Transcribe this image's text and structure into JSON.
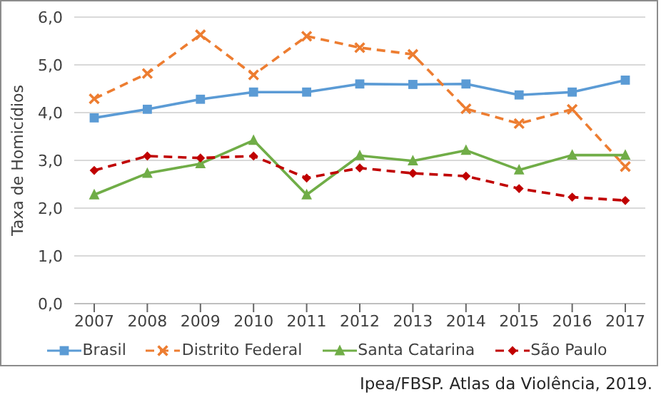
{
  "chart_data": {
    "type": "line",
    "ylabel": "Taxa de Homicídios",
    "categories": [
      "2007",
      "2008",
      "2009",
      "2010",
      "2011",
      "2012",
      "2013",
      "2014",
      "2015",
      "2016",
      "2017"
    ],
    "series": [
      {
        "name": "Brasil",
        "color": "#5b9bd5",
        "marker": "square",
        "line_style": "solid",
        "values": [
          3.89,
          4.07,
          4.28,
          4.43,
          4.43,
          4.6,
          4.59,
          4.6,
          4.37,
          4.43,
          4.68
        ]
      },
      {
        "name": "Distrito Federal",
        "color": "#ed7d31",
        "marker": "cross",
        "line_style": "dashed",
        "values": [
          4.29,
          4.82,
          5.63,
          4.79,
          5.6,
          5.36,
          5.22,
          4.08,
          3.77,
          4.07,
          2.87
        ]
      },
      {
        "name": "Santa Catarina",
        "color": "#70ad47",
        "marker": "triangle",
        "line_style": "solid",
        "values": [
          2.28,
          2.73,
          2.93,
          3.42,
          2.28,
          3.1,
          2.99,
          3.21,
          2.8,
          3.11,
          3.11
        ]
      },
      {
        "name": "São Paulo",
        "color": "#c00000",
        "marker": "diamond",
        "line_style": "dashed",
        "values": [
          2.79,
          3.09,
          3.05,
          3.09,
          2.63,
          2.84,
          2.73,
          2.67,
          2.41,
          2.23,
          2.16
        ]
      }
    ],
    "ylim": [
      0,
      6
    ],
    "yticks": [
      {
        "value": 0,
        "label": "0,0"
      },
      {
        "value": 1,
        "label": "1,0"
      },
      {
        "value": 2,
        "label": "2,0"
      },
      {
        "value": 3,
        "label": "3,0"
      },
      {
        "value": 4,
        "label": "4,0"
      },
      {
        "value": 5,
        "label": "5,0"
      },
      {
        "value": 6,
        "label": "6,0"
      }
    ],
    "grid": "y",
    "legend": "bottom",
    "annotations": [
      "Ipea/FBSP. Atlas da Violência, 2019."
    ]
  }
}
